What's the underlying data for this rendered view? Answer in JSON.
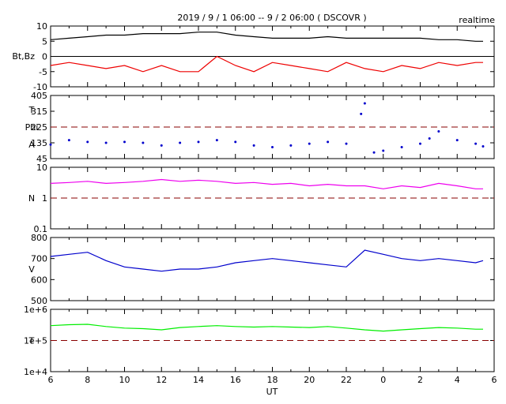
{
  "title": "2019 / 9 / 1   06:00 -- 9 / 2  06:00 ( DSCOVR )",
  "tag": "realtime",
  "xlabel": "UT",
  "x_tick_labels": [
    "6",
    "8",
    "10",
    "12",
    "14",
    "16",
    "18",
    "20",
    "22",
    "0",
    "2",
    "4",
    "6"
  ],
  "colors": {
    "bt": "#000000",
    "bz": "#ee0000",
    "phi": "#0000cc",
    "density": "#ee00ee",
    "speed": "#0000cc",
    "temperature": "#00ee00",
    "reference": "#880000"
  },
  "chart_data": [
    {
      "panel": "magnetic-field",
      "type": "line",
      "ylabel": "Bt,Bz",
      "ylim": [
        -10,
        10
      ],
      "y_tick_labels": [
        "10",
        "5",
        "0",
        "-5",
        "-10"
      ],
      "reference_lines": [
        0
      ],
      "x_range": [
        6,
        30
      ],
      "series": [
        {
          "key": "bt",
          "x": [
            6,
            7,
            8,
            9,
            10,
            11,
            12,
            13,
            14,
            15,
            16,
            17,
            18,
            19,
            20,
            21,
            22,
            23,
            24,
            25,
            26,
            27,
            28,
            29,
            29.4
          ],
          "values": [
            5.5,
            6.0,
            6.5,
            7.0,
            7.0,
            7.5,
            7.5,
            7.5,
            8.0,
            8.0,
            7.0,
            6.5,
            6.0,
            6.0,
            6.0,
            6.5,
            6.0,
            6.0,
            6.0,
            6.0,
            6.0,
            5.5,
            5.5,
            5.0,
            5.0
          ]
        },
        {
          "key": "bz",
          "x": [
            6,
            7,
            8,
            9,
            10,
            11,
            12,
            13,
            14,
            15,
            16,
            17,
            18,
            19,
            20,
            21,
            22,
            23,
            24,
            25,
            26,
            27,
            28,
            29,
            29.4
          ],
          "values": [
            -3.0,
            -2.0,
            -3.0,
            -4.0,
            -3.0,
            -5.0,
            -3.0,
            -5.0,
            -5.0,
            0.0,
            -3.0,
            -5.0,
            -2.0,
            -3.0,
            -4.0,
            -5.0,
            -2.0,
            -4.0,
            -5.0,
            -3.0,
            -4.0,
            -2.0,
            -3.0,
            -2.0,
            -2.0
          ]
        }
      ]
    },
    {
      "panel": "phi-angle",
      "type": "scatter",
      "ylabel_lines": [
        "T",
        "Phi",
        "A"
      ],
      "ylim": [
        45,
        405
      ],
      "y_tick_labels": [
        "405",
        "315",
        "225",
        "135",
        "45"
      ],
      "reference_lines": [
        225
      ],
      "x_range": [
        6,
        30
      ],
      "series": [
        {
          "key": "phi",
          "x": [
            6,
            7,
            8,
            9,
            10,
            11,
            12,
            13,
            14,
            15,
            16,
            17,
            18,
            19,
            20,
            21,
            22,
            22.8,
            23,
            23.5,
            24,
            25,
            26,
            26.5,
            27,
            28,
            29,
            29.4
          ],
          "values": [
            125,
            150,
            140,
            135,
            140,
            135,
            120,
            135,
            140,
            150,
            140,
            120,
            110,
            120,
            130,
            140,
            130,
            300,
            360,
            80,
            90,
            110,
            130,
            160,
            200,
            150,
            130,
            115
          ]
        }
      ]
    },
    {
      "panel": "density",
      "type": "line",
      "ylabel": "N",
      "yscale": "log",
      "ylim": [
        0.1,
        10
      ],
      "y_tick_labels": [
        "10",
        "1",
        "0.1"
      ],
      "reference_lines": [
        1
      ],
      "x_range": [
        6,
        30
      ],
      "series": [
        {
          "key": "density",
          "x": [
            6,
            7,
            8,
            9,
            10,
            11,
            12,
            13,
            14,
            15,
            16,
            17,
            18,
            19,
            20,
            21,
            22,
            23,
            24,
            25,
            26,
            27,
            28,
            29,
            29.4
          ],
          "values": [
            3.0,
            3.2,
            3.5,
            3.0,
            3.2,
            3.5,
            4.0,
            3.5,
            3.8,
            3.5,
            3.0,
            3.2,
            2.8,
            3.0,
            2.5,
            2.8,
            2.5,
            2.5,
            2.0,
            2.5,
            2.2,
            3.0,
            2.5,
            2.0,
            2.0
          ]
        }
      ]
    },
    {
      "panel": "speed",
      "type": "line",
      "ylabel": "V",
      "ylim": [
        500,
        800
      ],
      "y_tick_labels": [
        "800",
        "700",
        "600",
        "500"
      ],
      "x_range": [
        6,
        30
      ],
      "series": [
        {
          "key": "speed",
          "x": [
            6,
            7,
            8,
            9,
            10,
            11,
            12,
            13,
            14,
            15,
            16,
            17,
            18,
            19,
            20,
            21,
            22,
            23,
            24,
            25,
            26,
            27,
            28,
            29,
            29.4
          ],
          "values": [
            710,
            720,
            730,
            690,
            660,
            650,
            640,
            650,
            650,
            660,
            680,
            690,
            700,
            690,
            680,
            670,
            660,
            740,
            720,
            700,
            690,
            700,
            690,
            680,
            690
          ]
        }
      ]
    },
    {
      "panel": "temperature",
      "type": "line",
      "ylabel": "T",
      "yscale": "log",
      "ylim": [
        10000,
        1000000
      ],
      "y_tick_labels": [
        "1e+6",
        "1e+5",
        "1e+4"
      ],
      "reference_lines": [
        100000
      ],
      "x_range": [
        6,
        30
      ],
      "series": [
        {
          "key": "temperature",
          "x": [
            6,
            7,
            8,
            9,
            10,
            11,
            12,
            13,
            14,
            15,
            16,
            17,
            18,
            19,
            20,
            21,
            22,
            23,
            24,
            25,
            26,
            27,
            28,
            29,
            29.4
          ],
          "values": [
            300000,
            320000,
            330000,
            280000,
            250000,
            240000,
            220000,
            260000,
            280000,
            300000,
            280000,
            270000,
            280000,
            270000,
            260000,
            280000,
            250000,
            220000,
            200000,
            220000,
            240000,
            260000,
            250000,
            230000,
            230000
          ]
        }
      ]
    }
  ]
}
